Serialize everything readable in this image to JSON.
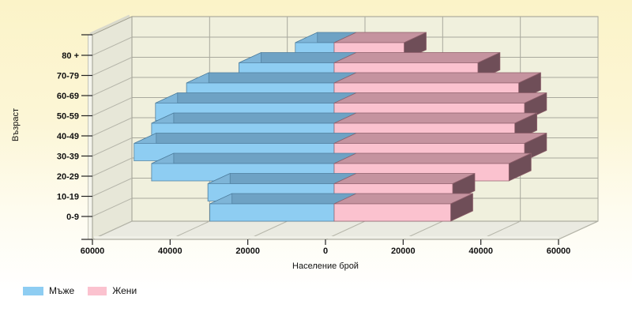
{
  "chart_data": {
    "type": "bar",
    "variant": "3d-population-pyramid",
    "categories": [
      "80 +",
      "70-79",
      "60-69",
      "50-59",
      "40-49",
      "30-39",
      "20-29",
      "10-19",
      "0-9"
    ],
    "categories_order": "top-to-bottom",
    "series": [
      {
        "name": "Мъже",
        "side": "left",
        "values": [
          10000,
          24500,
          38000,
          46000,
          47000,
          51500,
          47000,
          32500,
          32000
        ],
        "colors": {
          "front": "#8ecdf2",
          "top": "#6ea2c4",
          "side": "#7eb5d8",
          "edge": "#4d7d9d"
        }
      },
      {
        "name": "Жени",
        "side": "right",
        "values": [
          18000,
          37000,
          47500,
          49000,
          46500,
          49000,
          45000,
          30500,
          30000
        ],
        "colors": {
          "front": "#fbc2cf",
          "top": "#c5939f",
          "side": "#6f4e58",
          "edge": "#8e5f6b"
        }
      }
    ],
    "xlabel": "Население брой",
    "ylabel": "Възраст",
    "x_tick_labels": [
      "60000",
      "40000",
      "20000",
      "0",
      "20000",
      "40000",
      "60000"
    ],
    "x_tick_values": [
      -60000,
      -40000,
      -20000,
      0,
      20000,
      40000,
      60000
    ],
    "xlim": [
      -60000,
      60000
    ],
    "grid": true,
    "legend_position": "bottom-left"
  }
}
